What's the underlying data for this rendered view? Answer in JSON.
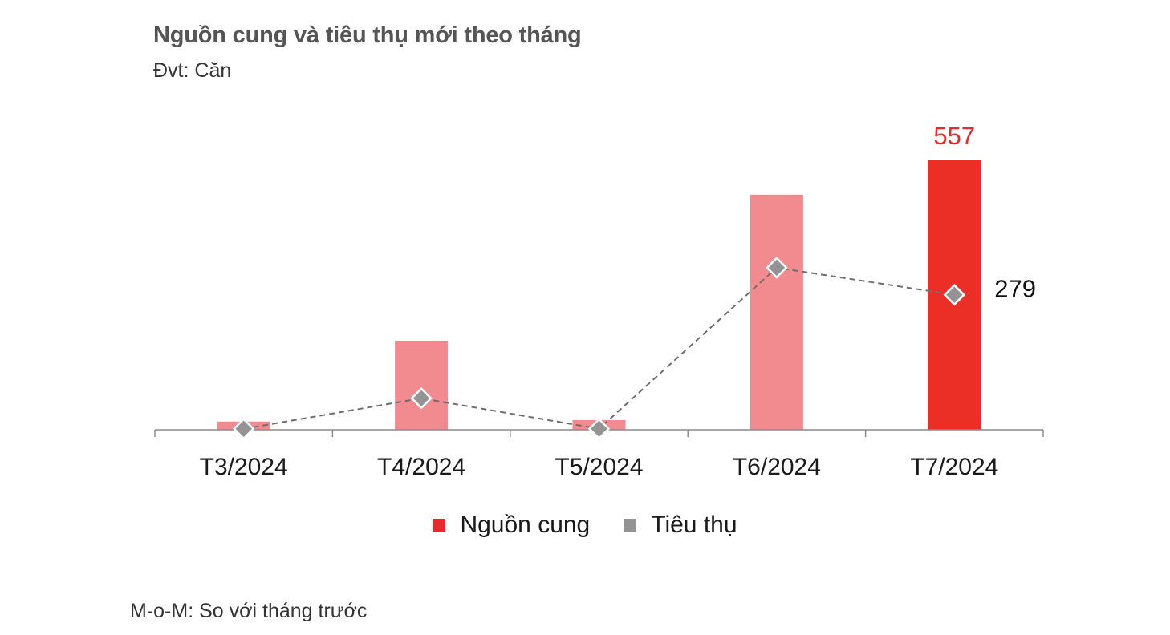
{
  "header": {
    "title": "Nguồn cung và tiêu thụ mới theo tháng",
    "unit": "Đvt: Căn"
  },
  "footnote": "M-o-M: So với tháng trước",
  "legend": [
    {
      "label": "Nguồn cung",
      "color": "#E32B2B"
    },
    {
      "label": "Tiêu thụ",
      "color": "#939393"
    }
  ],
  "colors": {
    "bar_past": "#F28B8F",
    "bar_current": "#EB2F27",
    "line": "#6E6E6E",
    "marker": "#939393",
    "axis": "#8C8C8C",
    "label_supply": "#E32B2B",
    "label_consumption": "#111111"
  },
  "chart_data": {
    "type": "bar",
    "title": "Nguồn cung và tiêu thụ mới theo tháng",
    "subtitle": "Đvt: Căn",
    "categories": [
      "T3/2024",
      "T4/2024",
      "T5/2024",
      "T6/2024",
      "T7/2024"
    ],
    "series": [
      {
        "name": "Nguồn cung",
        "type": "bar",
        "values": [
          17,
          184,
          20,
          486,
          557
        ]
      },
      {
        "name": "Tiêu thụ",
        "type": "line",
        "style": "dashed",
        "marker": "diamond",
        "values": [
          2,
          65,
          2,
          335,
          279
        ]
      }
    ],
    "data_labels": [
      {
        "series": "Nguồn cung",
        "category": "T7/2024",
        "text": "557"
      },
      {
        "series": "Tiêu thụ",
        "category": "T7/2024",
        "text": "279"
      }
    ],
    "xlabel": "",
    "ylabel": "",
    "ylim": [
      0,
      557
    ],
    "grid": false,
    "legend_position": "bottom"
  }
}
